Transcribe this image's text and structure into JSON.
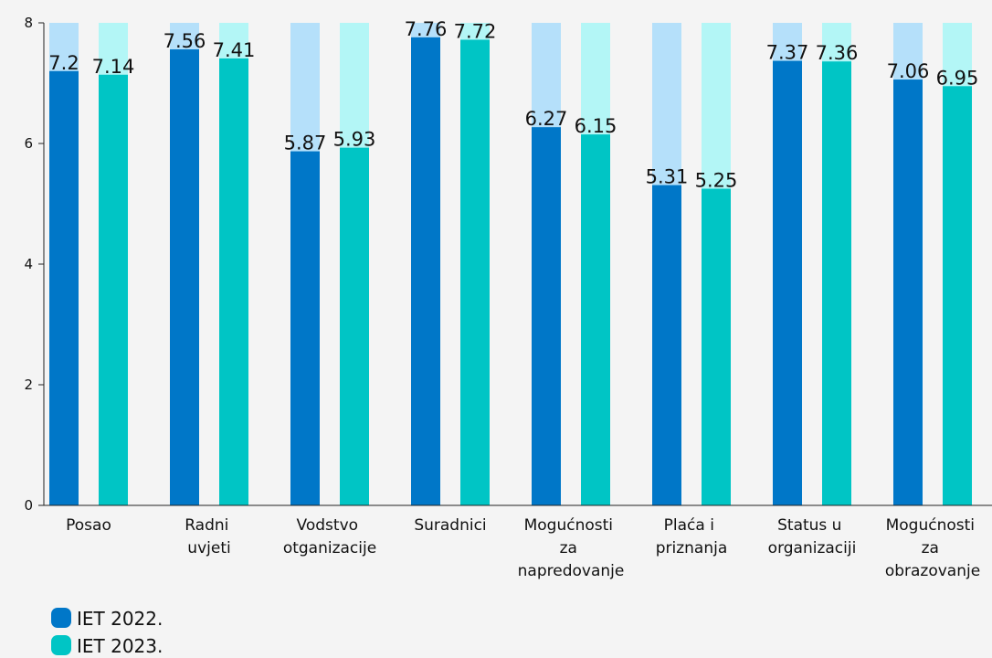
{
  "chart_data": {
    "type": "bar",
    "categories": [
      "Posao",
      "Radni uvjeti",
      "Vodstvo otganizacije",
      "Suradnici",
      "Mogućnosti za napredovanje",
      "Plaća i priznanja",
      "Status u organizaciji",
      "Mogućnosti za obrazovanje"
    ],
    "series": [
      {
        "name": "IET 2022.",
        "color": "#0077c8",
        "track_color": "#b5e0fa",
        "values": [
          7.2,
          7.56,
          5.87,
          7.76,
          6.27,
          5.31,
          7.37,
          7.06
        ]
      },
      {
        "name": "IET 2023.",
        "color": "#00c5c5",
        "track_color": "#b3f6f6",
        "values": [
          7.14,
          7.41,
          5.93,
          7.72,
          6.15,
          5.25,
          7.36,
          6.95
        ]
      }
    ],
    "ylim": [
      0,
      8
    ],
    "yticks": [
      0,
      2,
      4,
      6,
      8
    ],
    "legend": "bottom-left"
  }
}
